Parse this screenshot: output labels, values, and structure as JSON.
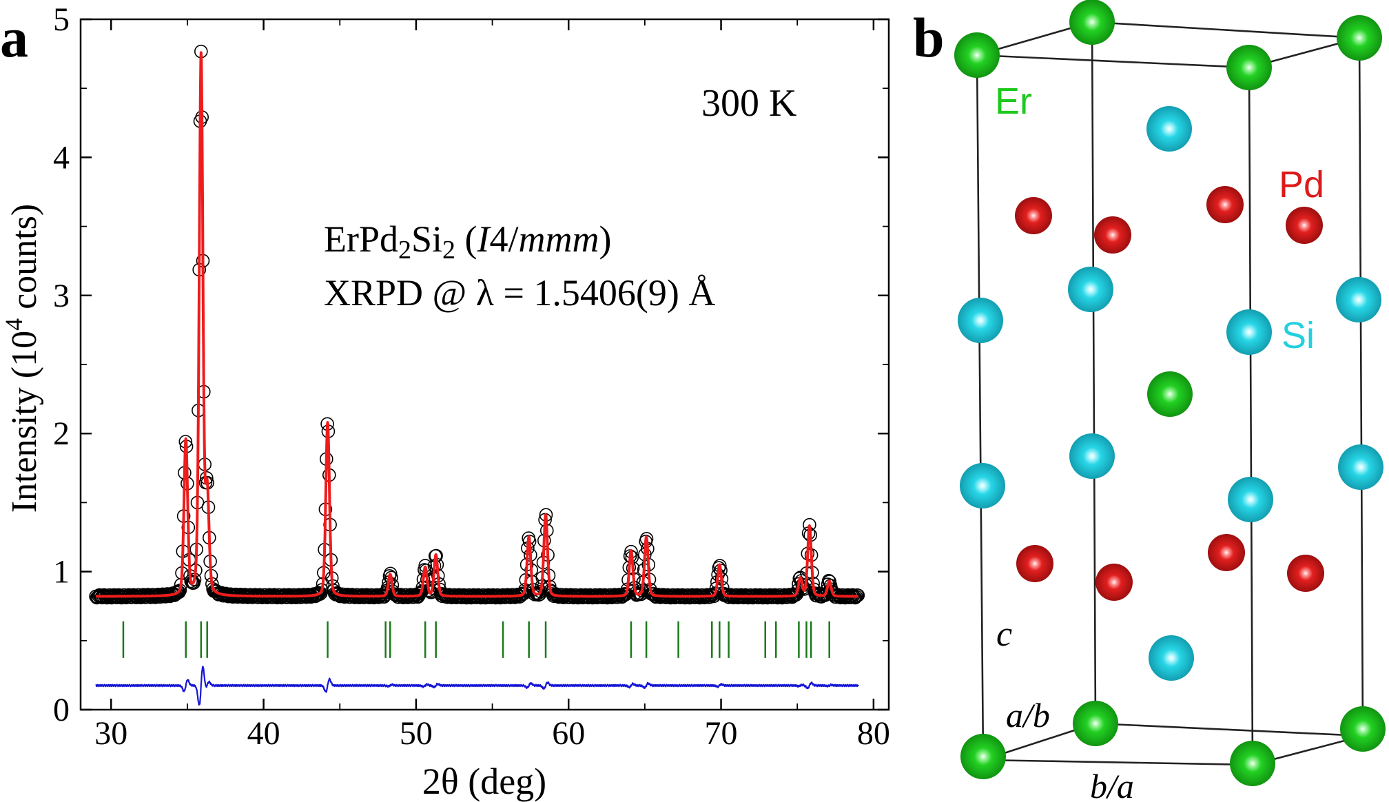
{
  "panel_a": {
    "letter": "a",
    "temperature": "300 K",
    "compound": {
      "base1": "ErPd",
      "sub1": "2",
      "base2": "Si",
      "sub2": "2",
      "sg_open": " (",
      "sg_I": "I",
      "sg_4": "4/",
      "sg_mmm": "mmm",
      "sg_close": ")"
    },
    "xrpd": "XRPD @ λ = 1.5406(9) Å",
    "ylabel": {
      "pre": "Intensity (10",
      "sup": "4",
      "post": " counts)"
    },
    "xlabel": "2θ (deg)"
  },
  "panel_b": {
    "letter": "b",
    "atoms": {
      "er": {
        "label": "Er",
        "color": "#1ec81e"
      },
      "pd": {
        "label": "Pd",
        "color": "#dd1a1a"
      },
      "si": {
        "label": "Si",
        "color": "#22d0e0"
      }
    },
    "axes": {
      "c": "c",
      "ab": "a/b",
      "ba": "b/a"
    }
  },
  "chart_data": {
    "type": "line",
    "title": "",
    "xlabel": "2θ (deg)",
    "ylabel": "Intensity (10^4 counts)",
    "xlim": [
      28,
      81
    ],
    "ylim": [
      0,
      5
    ],
    "xticks": [
      "30",
      "40",
      "50",
      "60",
      "70",
      "80"
    ],
    "yticks": [
      "0",
      "1",
      "2",
      "3",
      "4",
      "5"
    ],
    "grid": false,
    "background": 0.82,
    "difference_offset": 0.175,
    "peaks": [
      {
        "x": 34.9,
        "y": 1.94
      },
      {
        "x": 35.9,
        "y": 4.73
      },
      {
        "x": 36.3,
        "y": 1.54
      },
      {
        "x": 44.2,
        "y": 2.08
      },
      {
        "x": 48.3,
        "y": 0.98
      },
      {
        "x": 50.6,
        "y": 1.03
      },
      {
        "x": 51.3,
        "y": 1.12
      },
      {
        "x": 57.4,
        "y": 1.25
      },
      {
        "x": 58.5,
        "y": 1.41
      },
      {
        "x": 64.1,
        "y": 1.15
      },
      {
        "x": 65.1,
        "y": 1.25
      },
      {
        "x": 69.9,
        "y": 1.05
      },
      {
        "x": 75.2,
        "y": 0.95
      },
      {
        "x": 75.8,
        "y": 1.33
      },
      {
        "x": 77.1,
        "y": 0.93
      }
    ],
    "bragg_positions": [
      30.8,
      34.9,
      35.9,
      36.3,
      44.2,
      48.0,
      48.3,
      50.6,
      51.3,
      55.7,
      57.4,
      58.5,
      64.1,
      65.1,
      67.2,
      69.4,
      69.9,
      70.5,
      72.9,
      73.6,
      75.1,
      75.6,
      75.9,
      77.1
    ],
    "series": [
      {
        "label": "observed",
        "color": "#000000"
      },
      {
        "label": "calculated",
        "color": "#ee1c1c"
      },
      {
        "label": "Bragg positions",
        "color": "#1a7a1a"
      },
      {
        "label": "difference",
        "color": "#1616d6"
      }
    ]
  }
}
